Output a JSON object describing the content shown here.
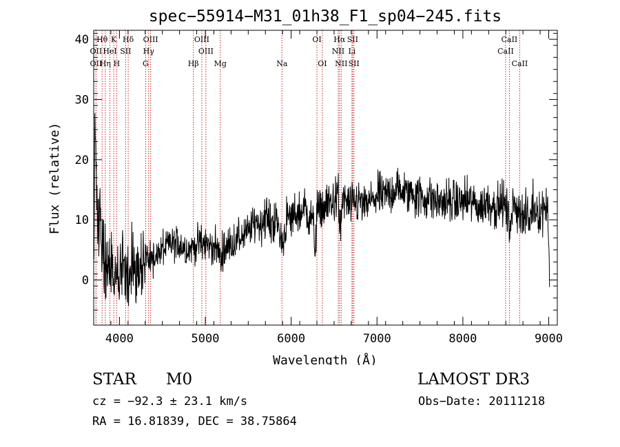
{
  "title": "spec−55914−M31_01h38_F1_sp04−245.fits",
  "info": {
    "object_class": "STAR",
    "subclass": "M0",
    "survey": "LAMOST DR3",
    "cz_text": "cz = −92.3 ± 23.1 km/s",
    "obs_date_text": "Obs−Date: 20111218",
    "coords_text": "RA =  16.81839, DEC =  38.75864"
  },
  "colors": {
    "spectrum": "#000000",
    "line_marker": "#c81e1e",
    "axes": "#000000"
  },
  "chart_data": {
    "type": "line",
    "title": "spec−55914−M31_01h38_F1_sp04−245.fits",
    "xlabel": "Wavelength (Å)",
    "ylabel": "Flux (relative)",
    "xlim": [
      3700,
      9100
    ],
    "ylim": [
      -7.5,
      41.5
    ],
    "xticks": [
      4000,
      5000,
      6000,
      7000,
      8000,
      9000
    ],
    "yticks": [
      0,
      10,
      20,
      30,
      40
    ],
    "grid": false,
    "noise_sigma": 1.5,
    "series": [
      {
        "name": "flux",
        "x": [
          3700,
          3715,
          3730,
          3745,
          3760,
          3775,
          3790,
          3810,
          3830,
          3850,
          3870,
          3890,
          3910,
          3930,
          3950,
          3970,
          3990,
          4010,
          4030,
          4060,
          4100,
          4150,
          4200,
          4250,
          4300,
          4350,
          4400,
          4450,
          4500,
          4600,
          4700,
          4800,
          4900,
          5000,
          5100,
          5150,
          5180,
          5200,
          5300,
          5400,
          5500,
          5600,
          5650,
          5700,
          5750,
          5800,
          5850,
          5893,
          5950,
          6000,
          6050,
          6100,
          6150,
          6200,
          6250,
          6280,
          6300,
          6320,
          6350,
          6400,
          6450,
          6500,
          6550,
          6563,
          6600,
          6650,
          6700,
          6750,
          6800,
          6850,
          6900,
          6950,
          7000,
          7050,
          7100,
          7200,
          7300,
          7350,
          7400,
          7450,
          7500,
          7550,
          7600,
          7700,
          7800,
          7900,
          8000,
          8100,
          8200,
          8300,
          8400,
          8450,
          8500,
          8542,
          8580,
          8620,
          8662,
          8700,
          8750,
          8770,
          8800,
          8850,
          8900,
          8950,
          8970,
          8990,
          9000,
          9010
        ],
        "values": [
          2,
          25,
          20,
          8,
          10,
          12,
          4,
          6,
          2,
          3,
          2,
          1,
          3,
          -1,
          0,
          1,
          -1,
          0,
          2,
          2,
          1,
          2,
          2,
          3,
          4,
          3,
          4,
          4,
          5,
          6,
          6,
          5,
          6,
          6,
          5.5,
          5,
          3,
          5,
          6,
          7,
          8,
          10,
          9,
          11,
          9,
          10,
          9,
          6,
          10,
          10,
          11,
          11,
          12,
          11,
          10,
          5,
          12,
          11,
          12,
          12,
          13,
          13,
          14,
          8,
          13,
          13,
          12,
          13,
          13,
          12,
          13,
          13,
          14,
          14,
          14,
          15,
          15,
          14,
          15,
          14,
          14,
          13,
          14,
          13,
          13,
          13,
          13,
          13,
          12,
          13,
          12,
          13,
          12,
          9,
          12,
          12,
          12,
          10,
          11,
          9,
          12,
          12,
          11,
          12,
          13,
          13,
          5,
          1
        ]
      }
    ],
    "line_markers": [
      {
        "label": "Hθ",
        "wavelength": 3798,
        "row": 0
      },
      {
        "label": "K",
        "wavelength": 3934,
        "row": 0
      },
      {
        "label": "Hδ",
        "wavelength": 4102,
        "row": 0
      },
      {
        "label": "OIII",
        "wavelength": 4363,
        "row": 0
      },
      {
        "label": "OIII",
        "wavelength": 4959,
        "row": 0
      },
      {
        "label": "OI",
        "wavelength": 6300,
        "row": 0
      },
      {
        "label": "Hα",
        "wavelength": 6563,
        "row": 0
      },
      {
        "label": "SII",
        "wavelength": 6716,
        "row": 0
      },
      {
        "label": "CaII",
        "wavelength": 8542,
        "row": 0
      },
      {
        "label": "OII",
        "wavelength": 3727,
        "row": 1
      },
      {
        "label": "HeI",
        "wavelength": 3889,
        "row": 1
      },
      {
        "label": "SII",
        "wavelength": 4072,
        "row": 1
      },
      {
        "label": "Hγ",
        "wavelength": 4340,
        "row": 1
      },
      {
        "label": "OIII",
        "wavelength": 5007,
        "row": 1
      },
      {
        "label": "NII",
        "wavelength": 6548,
        "row": 1
      },
      {
        "label": "Li",
        "wavelength": 6708,
        "row": 1
      },
      {
        "label": "CaII",
        "wavelength": 8498,
        "row": 1
      },
      {
        "label": "OII",
        "wavelength": 3727,
        "row": 2
      },
      {
        "label": "Hη",
        "wavelength": 3835,
        "row": 2
      },
      {
        "label": "H",
        "wavelength": 3968,
        "row": 2
      },
      {
        "label": "G",
        "wavelength": 4305,
        "row": 2
      },
      {
        "label": "Hβ",
        "wavelength": 4861,
        "row": 2
      },
      {
        "label": "Mg",
        "wavelength": 5175,
        "row": 2
      },
      {
        "label": "Na",
        "wavelength": 5893,
        "row": 2
      },
      {
        "label": "OI",
        "wavelength": 6363,
        "row": 2
      },
      {
        "label": "NII",
        "wavelength": 6583,
        "row": 2
      },
      {
        "label": "SII",
        "wavelength": 6731,
        "row": 2
      },
      {
        "label": "CaII",
        "wavelength": 8662,
        "row": 2
      }
    ]
  }
}
